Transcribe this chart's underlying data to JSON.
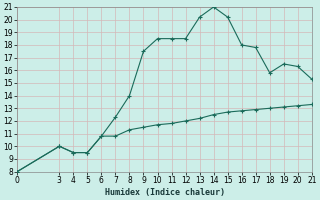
{
  "xlabel": "Humidex (Indice chaleur)",
  "bg_color": "#cceee8",
  "grid_color": "#b8d8d4",
  "line_color": "#1a6b5a",
  "xlim": [
    0,
    21
  ],
  "ylim": [
    8,
    21
  ],
  "xticks": [
    0,
    3,
    4,
    5,
    6,
    7,
    8,
    9,
    10,
    11,
    12,
    13,
    14,
    15,
    16,
    17,
    18,
    19,
    20,
    21
  ],
  "yticks": [
    8,
    9,
    10,
    11,
    12,
    13,
    14,
    15,
    16,
    17,
    18,
    19,
    20,
    21
  ],
  "line1_x": [
    0,
    3,
    4,
    5,
    6,
    7,
    8,
    9,
    10,
    11,
    12,
    13,
    14,
    15,
    16,
    17,
    18,
    19,
    20,
    21
  ],
  "line1_y": [
    8,
    10,
    9.5,
    9.5,
    10.8,
    12.3,
    14.0,
    17.5,
    18.5,
    18.5,
    18.5,
    20.2,
    21.0,
    20.2,
    18.0,
    17.8,
    15.8,
    16.5,
    16.3,
    15.3
  ],
  "line2_x": [
    0,
    3,
    4,
    5,
    6,
    7,
    8,
    9,
    10,
    11,
    12,
    13,
    14,
    15,
    16,
    17,
    18,
    19,
    20,
    21
  ],
  "line2_y": [
    8,
    10.0,
    9.5,
    9.5,
    10.8,
    10.8,
    11.3,
    11.5,
    11.7,
    11.8,
    12.0,
    12.2,
    12.5,
    12.7,
    12.8,
    12.9,
    13.0,
    13.1,
    13.2,
    13.3
  ],
  "marker": "+"
}
